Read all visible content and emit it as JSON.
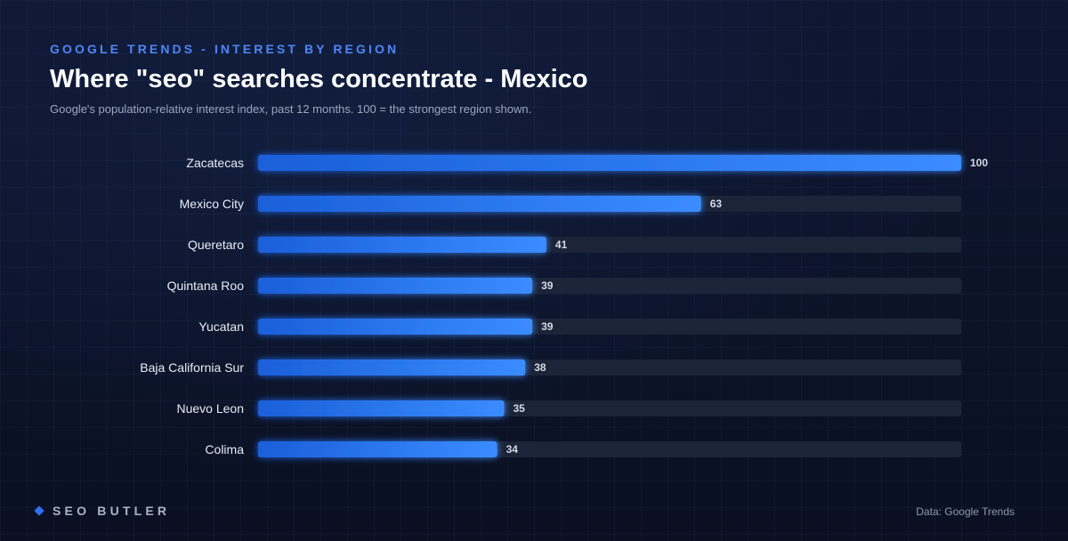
{
  "header": {
    "eyebrow": "GOOGLE TRENDS - INTEREST BY REGION",
    "title": "Where \"seo\" searches concentrate - Mexico",
    "subtitle": "Google's population-relative interest index, past 12 months. 100 = the strongest region shown."
  },
  "chart_data": {
    "type": "bar",
    "orientation": "horizontal",
    "categories": [
      "Zacatecas",
      "Mexico City",
      "Queretaro",
      "Quintana Roo",
      "Yucatan",
      "Baja California Sur",
      "Nuevo Leon",
      "Colima"
    ],
    "values": [
      100,
      63,
      41,
      39,
      39,
      38,
      35,
      34
    ],
    "xlim": [
      0,
      100
    ],
    "grid": false,
    "legend": "none",
    "bar_color_start": "#1a5fd9",
    "bar_color_end": "#3b8cff",
    "track_color": "#1b2438"
  },
  "footer": {
    "brand": "SEO BUTLER",
    "brand_icon": "diamond-icon",
    "source": "Data: Google Trends"
  }
}
